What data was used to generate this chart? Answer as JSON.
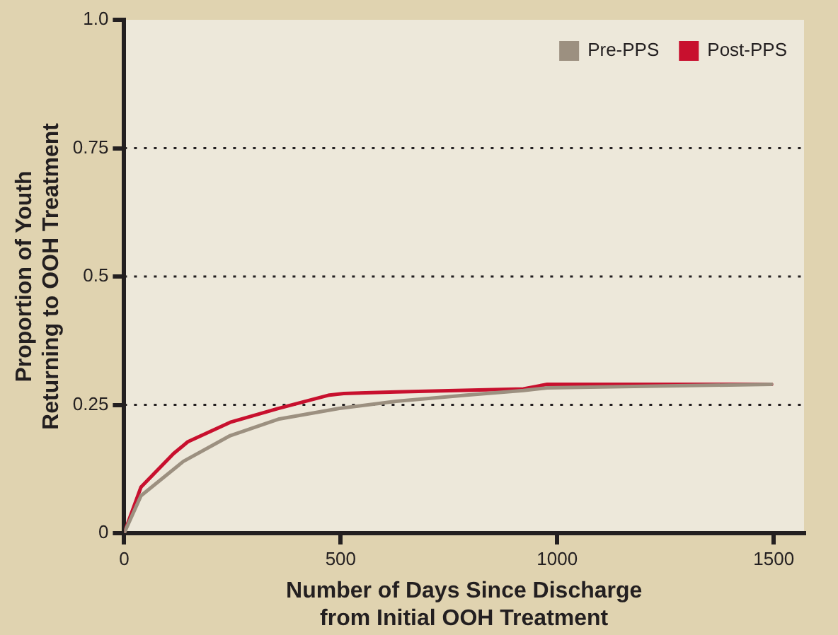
{
  "chart_data": {
    "type": "line",
    "xlabel": "Number of Days Since Discharge\nfrom Initial OOH Treatment",
    "ylabel": "Proportion of Youth\nReturning to OOH Treatment",
    "xlim": [
      0,
      1570
    ],
    "xticks": [
      0,
      500,
      1000,
      1500
    ],
    "ylim": [
      0,
      1
    ],
    "yticks": [
      0,
      0.25,
      0.5,
      0.75,
      {
        "value": 1,
        "label": "1.0"
      }
    ],
    "grid": "y",
    "legend": "top right",
    "marker": "none",
    "line_style": "solid",
    "series": [
      {
        "name": "Pre-PPS",
        "color": "#9c9080",
        "x": [
          0,
          39,
          137,
          245,
          356,
          497,
          628,
          791,
          922,
          977,
          1495
        ],
        "values": [
          0,
          0.073,
          0.14,
          0.19,
          0.222,
          0.243,
          0.257,
          0.269,
          0.278,
          0.283,
          0.29
        ]
      },
      {
        "name": "Post-PPS",
        "color": "#c8102e",
        "x": [
          0,
          39,
          114,
          147,
          245,
          356,
          474,
          507,
          628,
          922,
          977,
          1495
        ],
        "values": [
          0,
          0.09,
          0.155,
          0.178,
          0.216,
          0.243,
          0.269,
          0.272,
          0.275,
          0.281,
          0.29,
          0.29
        ]
      }
    ]
  }
}
